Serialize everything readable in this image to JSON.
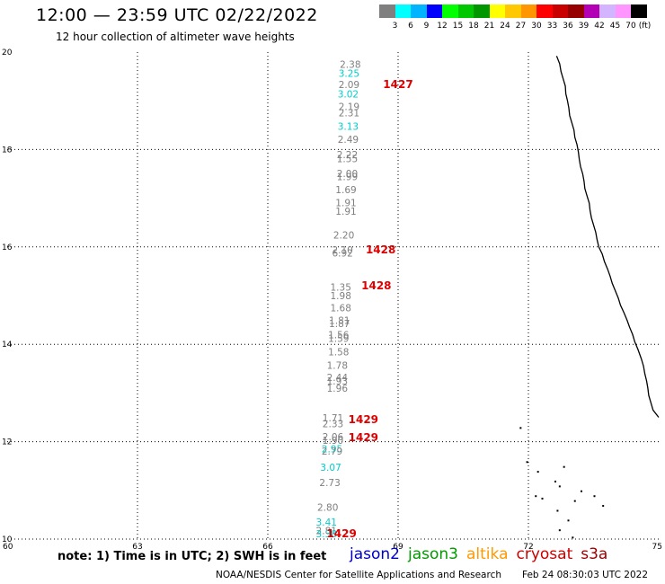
{
  "header": {
    "title": "12:00 — 23:59 UTC 02/22/2022",
    "subtitle": "12 hour collection of altimeter wave heights"
  },
  "color_scale": {
    "labels": [
      "3",
      "6",
      "9",
      "12",
      "15",
      "18",
      "21",
      "24",
      "27",
      "30",
      "33",
      "36",
      "39",
      "42",
      "45",
      "70"
    ],
    "unit": "(ft)",
    "colors": [
      "#7f7f7f",
      "#00ffff",
      "#00b4ff",
      "#0000ff",
      "#00ff00",
      "#00c800",
      "#009600",
      "#ffff00",
      "#ffc800",
      "#ff9600",
      "#ff0000",
      "#c80000",
      "#960000",
      "#b400b4",
      "#d2b4ff",
      "#ff96ff",
      "#000000"
    ]
  },
  "footer": {
    "note": "note:  1) Time is in UTC; 2) SWH is in feet",
    "satellites": [
      {
        "name": "jason2",
        "color": "#0000cc"
      },
      {
        "name": "jason3",
        "color": "#009900"
      },
      {
        "name": "altika",
        "color": "#ff9900"
      },
      {
        "name": "cryosat",
        "color": "#cc0000"
      },
      {
        "name": "s3a",
        "color": "#990000"
      }
    ],
    "credit": "NOAA/NESDIS Center for Satellite Applications and Research",
    "timestamp": "Feb 24 08:30:03 UTC 2022"
  },
  "chart_data": {
    "type": "scatter",
    "title": "12:00 — 23:59 UTC 02/22/2022",
    "subtitle": "12 hour collection of altimeter wave heights",
    "xlim": [
      60,
      75
    ],
    "ylim": [
      10,
      20
    ],
    "xticks": [
      60,
      63,
      66,
      69,
      72,
      75
    ],
    "yticks": [
      10,
      12,
      14,
      16,
      18,
      20
    ],
    "grid": true,
    "points": [
      {
        "x": 67.9,
        "y": 19.68,
        "label": "2.38",
        "color": "#7f7f7f"
      },
      {
        "x": 67.87,
        "y": 19.49,
        "label": "3.25",
        "color": "#00cccc"
      },
      {
        "x": 67.87,
        "y": 19.26,
        "label": "2.09",
        "color": "#7f7f7f"
      },
      {
        "x": 67.85,
        "y": 19.07,
        "label": "3.02",
        "color": "#00cccc"
      },
      {
        "x": 67.87,
        "y": 18.81,
        "label": "2.19",
        "color": "#7f7f7f"
      },
      {
        "x": 67.87,
        "y": 18.68,
        "label": "2.31",
        "color": "#7f7f7f"
      },
      {
        "x": 67.85,
        "y": 18.4,
        "label": "3.13",
        "color": "#00cccc"
      },
      {
        "x": 67.85,
        "y": 18.14,
        "label": "2.49",
        "color": "#7f7f7f"
      },
      {
        "x": 67.83,
        "y": 17.82,
        "label": "2.22",
        "color": "#7f7f7f"
      },
      {
        "x": 67.83,
        "y": 17.74,
        "label": "1.55",
        "color": "#7f7f7f"
      },
      {
        "x": 67.83,
        "y": 17.44,
        "label": "2.00",
        "color": "#7f7f7f"
      },
      {
        "x": 67.83,
        "y": 17.37,
        "label": "1.99",
        "color": "#7f7f7f"
      },
      {
        "x": 67.8,
        "y": 17.1,
        "label": "1.69",
        "color": "#7f7f7f"
      },
      {
        "x": 67.8,
        "y": 16.84,
        "label": "1.91",
        "color": "#7f7f7f"
      },
      {
        "x": 67.8,
        "y": 16.66,
        "label": "1.91",
        "color": "#7f7f7f"
      },
      {
        "x": 67.75,
        "y": 16.17,
        "label": "2.20",
        "color": "#7f7f7f"
      },
      {
        "x": 67.72,
        "y": 15.87,
        "label": "2.10",
        "color": "#7f7f7f"
      },
      {
        "x": 67.72,
        "y": 15.8,
        "label": "6.92",
        "color": "#7f7f7f"
      },
      {
        "x": 67.68,
        "y": 15.1,
        "label": "1.35",
        "color": "#7f7f7f"
      },
      {
        "x": 67.68,
        "y": 14.93,
        "label": "1.98",
        "color": "#7f7f7f"
      },
      {
        "x": 67.68,
        "y": 14.68,
        "label": "1.68",
        "color": "#7f7f7f"
      },
      {
        "x": 67.65,
        "y": 14.42,
        "label": "1.81",
        "color": "#7f7f7f"
      },
      {
        "x": 67.65,
        "y": 14.35,
        "label": "1.87",
        "color": "#7f7f7f"
      },
      {
        "x": 67.63,
        "y": 14.12,
        "label": "1.56",
        "color": "#7f7f7f"
      },
      {
        "x": 67.63,
        "y": 14.05,
        "label": "1.59",
        "color": "#7f7f7f"
      },
      {
        "x": 67.63,
        "y": 13.77,
        "label": "1.58",
        "color": "#7f7f7f"
      },
      {
        "x": 67.6,
        "y": 13.5,
        "label": "1.78",
        "color": "#7f7f7f"
      },
      {
        "x": 67.6,
        "y": 13.25,
        "label": "2.44",
        "color": "#7f7f7f"
      },
      {
        "x": 67.6,
        "y": 13.17,
        "label": "1.93",
        "color": "#7f7f7f"
      },
      {
        "x": 67.6,
        "y": 13.03,
        "label": "1.96",
        "color": "#7f7f7f"
      },
      {
        "x": 67.5,
        "y": 12.42,
        "label": "1.71",
        "color": "#7f7f7f"
      },
      {
        "x": 67.5,
        "y": 12.3,
        "label": "2.33",
        "color": "#7f7f7f"
      },
      {
        "x": 67.5,
        "y": 12.03,
        "label": "2.06",
        "color": "#7f7f7f"
      },
      {
        "x": 67.5,
        "y": 11.96,
        "label": "1.90",
        "color": "#7f7f7f"
      },
      {
        "x": 67.48,
        "y": 11.78,
        "label": "2.95",
        "color": "#00cccc"
      },
      {
        "x": 67.48,
        "y": 11.73,
        "label": "2.79",
        "color": "#7f7f7f"
      },
      {
        "x": 67.45,
        "y": 11.4,
        "label": "3.07",
        "color": "#00cccc"
      },
      {
        "x": 67.43,
        "y": 11.09,
        "label": "2.73",
        "color": "#7f7f7f"
      },
      {
        "x": 67.38,
        "y": 10.58,
        "label": "2.80",
        "color": "#7f7f7f"
      },
      {
        "x": 67.35,
        "y": 10.28,
        "label": "3.41",
        "color": "#00cccc"
      },
      {
        "x": 67.35,
        "y": 10.1,
        "label": "2.81",
        "color": "#7f7f7f"
      },
      {
        "x": 67.35,
        "y": 10.04,
        "label": "3.38",
        "color": "#00cccc"
      }
    ],
    "track_labels": [
      {
        "x": 69.0,
        "y": 19.26,
        "label": "1427",
        "color": "#dd0000"
      },
      {
        "x": 68.6,
        "y": 15.87,
        "label": "1428",
        "color": "#dd0000"
      },
      {
        "x": 68.5,
        "y": 15.13,
        "label": "1428",
        "color": "#dd0000"
      },
      {
        "x": 68.2,
        "y": 12.38,
        "label": "1429",
        "color": "#dd0000"
      },
      {
        "x": 68.2,
        "y": 12.01,
        "label": "1429",
        "color": "#dd0000"
      },
      {
        "x": 67.7,
        "y": 10.04,
        "label": "1429",
        "color": "#dd0000"
      }
    ],
    "coastline": [
      [
        72.65,
        19.92
      ],
      [
        72.72,
        19.76
      ],
      [
        72.75,
        19.6
      ],
      [
        72.8,
        19.45
      ],
      [
        72.85,
        19.3
      ],
      [
        72.86,
        19.15
      ],
      [
        72.9,
        19.0
      ],
      [
        72.93,
        18.85
      ],
      [
        72.95,
        18.7
      ],
      [
        73.0,
        18.55
      ],
      [
        73.05,
        18.4
      ],
      [
        73.07,
        18.25
      ],
      [
        73.12,
        18.1
      ],
      [
        73.15,
        17.95
      ],
      [
        73.17,
        17.8
      ],
      [
        73.2,
        17.65
      ],
      [
        73.25,
        17.5
      ],
      [
        73.28,
        17.35
      ],
      [
        73.3,
        17.2
      ],
      [
        73.35,
        17.05
      ],
      [
        73.4,
        16.9
      ],
      [
        73.42,
        16.75
      ],
      [
        73.45,
        16.6
      ],
      [
        73.5,
        16.45
      ],
      [
        73.55,
        16.3
      ],
      [
        73.58,
        16.15
      ],
      [
        73.62,
        16.0
      ],
      [
        73.7,
        15.85
      ],
      [
        73.75,
        15.7
      ],
      [
        73.82,
        15.55
      ],
      [
        73.88,
        15.4
      ],
      [
        73.93,
        15.25
      ],
      [
        74.0,
        15.1
      ],
      [
        74.07,
        14.95
      ],
      [
        74.12,
        14.8
      ],
      [
        74.2,
        14.65
      ],
      [
        74.27,
        14.5
      ],
      [
        74.33,
        14.35
      ],
      [
        74.4,
        14.2
      ],
      [
        74.45,
        14.05
      ],
      [
        74.52,
        13.9
      ],
      [
        74.6,
        13.7
      ],
      [
        74.65,
        13.55
      ],
      [
        74.68,
        13.4
      ],
      [
        74.72,
        13.25
      ],
      [
        74.75,
        13.1
      ],
      [
        74.77,
        12.95
      ],
      [
        74.82,
        12.8
      ],
      [
        74.87,
        12.65
      ],
      [
        75.0,
        12.5
      ]
    ],
    "islands": [
      [
        71.8,
        12.3
      ],
      [
        71.95,
        11.6
      ],
      [
        72.2,
        11.4
      ],
      [
        72.15,
        10.9
      ],
      [
        72.3,
        10.85
      ],
      [
        72.6,
        11.2
      ],
      [
        72.7,
        11.1
      ],
      [
        72.8,
        11.5
      ],
      [
        72.65,
        10.6
      ],
      [
        72.9,
        10.4
      ],
      [
        73.05,
        10.8
      ],
      [
        73.2,
        11.0
      ],
      [
        73.5,
        10.9
      ],
      [
        73.7,
        10.7
      ],
      [
        72.7,
        10.2
      ],
      [
        73.0,
        10.05
      ]
    ]
  }
}
